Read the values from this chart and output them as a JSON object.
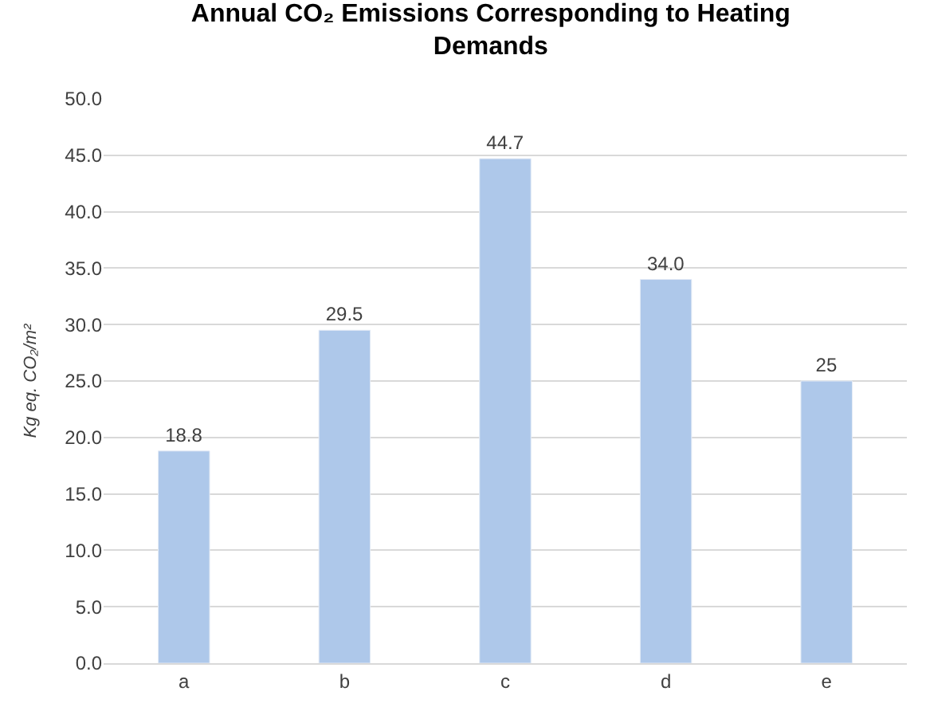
{
  "chart_data": {
    "type": "bar",
    "title": "Annual CO₂ Emissions Corresponding to Heating Demands",
    "ylabel": "Kg eq. CO₂/m²",
    "categories": [
      "a",
      "b",
      "c",
      "d",
      "e"
    ],
    "values": [
      18.8,
      29.5,
      44.7,
      34.0,
      25
    ],
    "value_labels": [
      "18.8",
      "29.5",
      "44.7",
      "34.0",
      "25"
    ],
    "color": "#aec8ea",
    "ylim": [
      0,
      50
    ],
    "yticks": [
      {
        "value": 0,
        "label": "0.0"
      },
      {
        "value": 5,
        "label": "5.0"
      },
      {
        "value": 10,
        "label": "10.0"
      },
      {
        "value": 15,
        "label": "15.0"
      },
      {
        "value": 20,
        "label": "20.0"
      },
      {
        "value": 25,
        "label": "25.0"
      },
      {
        "value": 30,
        "label": "30.0"
      },
      {
        "value": 35,
        "label": "35.0"
      },
      {
        "value": 40,
        "label": "40.0"
      },
      {
        "value": 45,
        "label": "45.0"
      },
      {
        "value": 50,
        "label": "50.0"
      }
    ],
    "grid": "y"
  }
}
